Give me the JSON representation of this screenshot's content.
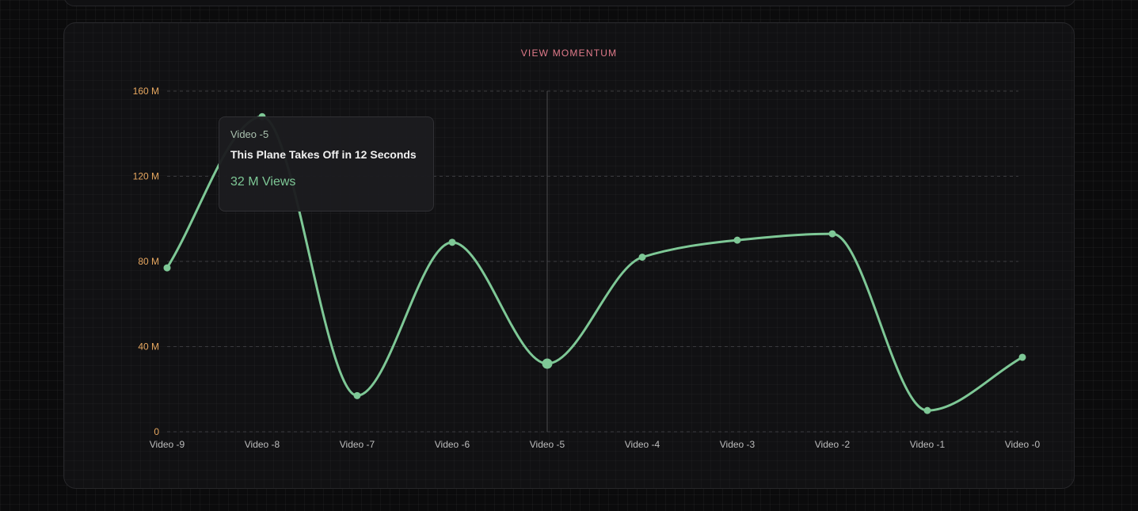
{
  "chart_data": {
    "type": "line",
    "title": "VIEW MOMENTUM",
    "categories": [
      "Video -9",
      "Video -8",
      "Video -7",
      "Video -6",
      "Video -5",
      "Video -4",
      "Video -3",
      "Video -2",
      "Video -1",
      "Video -0"
    ],
    "values": [
      77,
      148,
      17,
      89,
      32,
      82,
      90,
      93,
      10,
      35
    ],
    "ylim": [
      0,
      160
    ],
    "yticks": [
      0,
      40,
      80,
      120,
      160
    ],
    "ytick_labels": [
      "0",
      "40 M",
      "80 M",
      "120 M",
      "160 M"
    ],
    "grid": "dashed horizontal",
    "highlight_index": 4
  },
  "tooltip": {
    "label": "Video -5",
    "title": "This Plane Takes Off in 12 Seconds",
    "value": "32 M Views"
  },
  "colors": {
    "line": "#7ec896",
    "ytick": "#e8a860",
    "xtick": "#bdbdbd",
    "title": "#e07a8a"
  }
}
